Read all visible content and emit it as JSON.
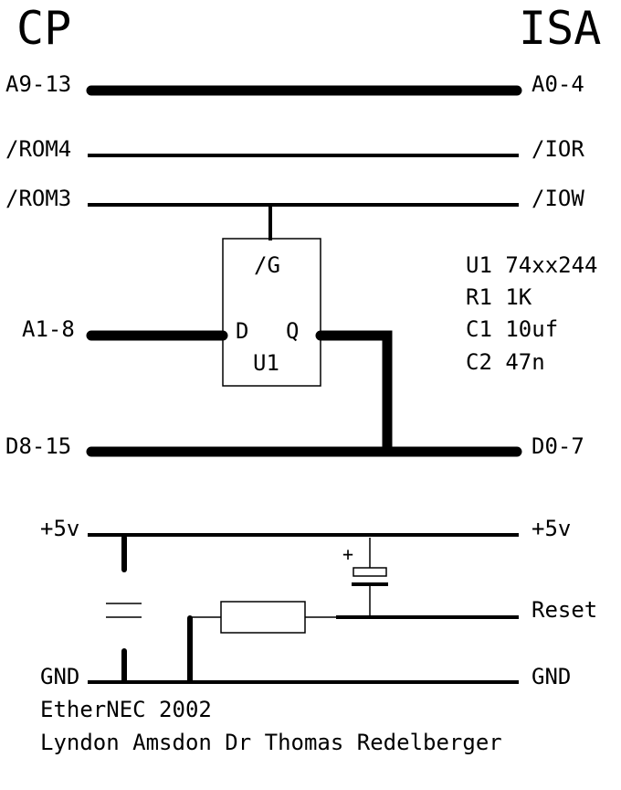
{
  "header": {
    "left_title": "CP",
    "right_title": "ISA"
  },
  "left_labels": {
    "addr_hi": "A9-13",
    "rom4": "/ROM4",
    "rom3": "/ROM3",
    "addr_lo": "A1-8",
    "data_hi": "D8-15",
    "vcc": "+5v",
    "gnd": "GND"
  },
  "right_labels": {
    "addr": "A0-4",
    "ior": "/IOR",
    "iow": "/IOW",
    "data": "D0-7",
    "vcc": "+5v",
    "reset": "Reset",
    "gnd": "GND"
  },
  "chip": {
    "enable": "/G",
    "input": "D",
    "output": "Q",
    "ref": "U1"
  },
  "parts_list": [
    "U1 74xx244",
    "R1 1K",
    "C1 10uf",
    "C2 47n"
  ],
  "polarity_mark": "+",
  "footer": {
    "line1": "EtherNEC 2002",
    "line2": "Lyndon Amsdon Dr Thomas Redelberger"
  }
}
